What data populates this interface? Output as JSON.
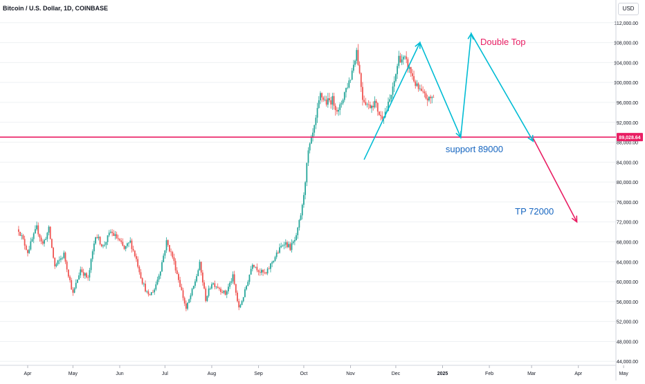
{
  "header": {
    "symbol": "Bitcoin / U.S. Dollar, 1D, COINBASE"
  },
  "currency": {
    "label": "USD"
  },
  "colors": {
    "up": "#26a69a",
    "down": "#ef5350",
    "grid": "#eef0f3",
    "support": "#e91e63",
    "pattern": "#00bcd4",
    "target": "#e91e63",
    "annot_red": "#e91e63",
    "annot_blue": "#1565c0"
  },
  "chart_data": {
    "type": "candlestick",
    "x_labels": [
      "Apr",
      "May",
      "Jun",
      "Jul",
      "Aug",
      "Sep",
      "Oct",
      "Nov",
      "Dec",
      "2025",
      "Feb",
      "Mar",
      "Apr",
      "May"
    ],
    "y_ticks": [
      44000,
      48000,
      52000,
      56000,
      60000,
      64000,
      68000,
      72000,
      76000,
      80000,
      84000,
      88000,
      92000,
      96000,
      100000,
      104000,
      108000,
      112000
    ],
    "y_tick_labels": [
      "44,000.00",
      "48,000.00",
      "52,000.00",
      "56,000.00",
      "60,000.00",
      "64,000.00",
      "68,000.00",
      "72,000.00",
      "76,000.00",
      "80,000.00",
      "84,000.00",
      "88,000.00",
      "92,000.00",
      "96,000.00",
      "100,000.00",
      "104,000.00",
      "108,000.00",
      "112,000.00"
    ],
    "ylim": [
      43200,
      113500
    ],
    "price_path": [
      [
        -6,
        70500
      ],
      [
        0,
        66000
      ],
      [
        6,
        70800
      ],
      [
        10,
        67500
      ],
      [
        14,
        70500
      ],
      [
        18,
        63000
      ],
      [
        24,
        65500
      ],
      [
        30,
        57500
      ],
      [
        35,
        62500
      ],
      [
        40,
        60500
      ],
      [
        45,
        69500
      ],
      [
        50,
        67000
      ],
      [
        55,
        70000
      ],
      [
        60,
        68500
      ],
      [
        64,
        66500
      ],
      [
        68,
        68000
      ],
      [
        72,
        64500
      ],
      [
        76,
        60000
      ],
      [
        80,
        57000
      ],
      [
        84,
        58500
      ],
      [
        88,
        62500
      ],
      [
        92,
        68000
      ],
      [
        96,
        65000
      ],
      [
        100,
        60500
      ],
      [
        105,
        54500
      ],
      [
        110,
        59000
      ],
      [
        114,
        63500
      ],
      [
        118,
        56500
      ],
      [
        122,
        59800
      ],
      [
        126,
        59000
      ],
      [
        131,
        57500
      ],
      [
        136,
        61000
      ],
      [
        140,
        54500
      ],
      [
        144,
        58000
      ],
      [
        149,
        63800
      ],
      [
        154,
        62000
      ],
      [
        158,
        61500
      ],
      [
        162,
        64000
      ],
      [
        166,
        66000
      ],
      [
        170,
        68000
      ],
      [
        174,
        66800
      ],
      [
        178,
        68800
      ],
      [
        182,
        75000
      ],
      [
        186,
        86000
      ],
      [
        190,
        90800
      ],
      [
        194,
        97500
      ],
      [
        198,
        96000
      ],
      [
        202,
        96500
      ],
      [
        206,
        94000
      ],
      [
        210,
        98000
      ],
      [
        214,
        101000
      ],
      [
        218,
        106500
      ],
      [
        222,
        97000
      ],
      [
        226,
        95200
      ],
      [
        230,
        96000
      ],
      [
        234,
        93000
      ],
      [
        238,
        94500
      ],
      [
        242,
        98500
      ],
      [
        246,
        105000
      ],
      [
        250,
        104500
      ],
      [
        254,
        102000
      ],
      [
        258,
        99000
      ],
      [
        262,
        97500
      ],
      [
        266,
        96500
      ],
      [
        270,
        97500
      ]
    ],
    "ohlc": [],
    "levels": [
      {
        "label": "89,028.64",
        "value": 89028.64
      }
    ],
    "annotations": [
      {
        "text": "Double Top",
        "x": "2025-01-26",
        "y": 107500,
        "color": "annot_red"
      },
      {
        "text": "support 89000",
        "x": "2025-01-03",
        "y": 86000,
        "color": "annot_blue"
      },
      {
        "text": "TP 72000",
        "x": "2025-02-18",
        "y": 73500,
        "color": "annot_blue"
      }
    ],
    "pattern_line": [
      [
        "2024-11-10",
        84500
      ],
      [
        "2024-12-17",
        108000
      ],
      [
        "2025-01-13",
        89000
      ],
      [
        "2025-01-20",
        109800
      ],
      [
        "2025-03-02",
        88200
      ]
    ],
    "target_line": [
      [
        "2025-03-02",
        88800
      ],
      [
        "2025-03-31",
        72000
      ]
    ]
  }
}
